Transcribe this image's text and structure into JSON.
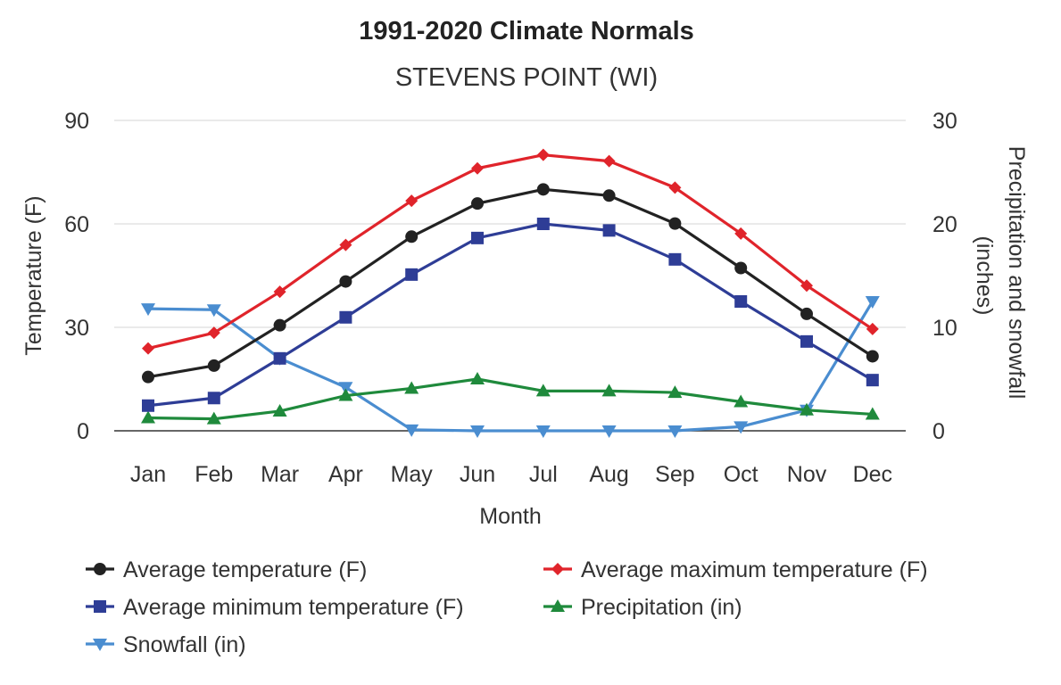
{
  "chart_data": {
    "type": "line",
    "title": "1991-2020 Climate Normals",
    "subtitle": "STEVENS POINT (WI)",
    "xlabel": "Month",
    "ylabel": "Temperature (F)",
    "y2label_line1": "Precipitation and snowfall",
    "y2label_line2": "(inches)",
    "categories": [
      "Jan",
      "Feb",
      "Mar",
      "Apr",
      "May",
      "Jun",
      "Jul",
      "Aug",
      "Sep",
      "Oct",
      "Nov",
      "Dec"
    ],
    "ylim": [
      0,
      90
    ],
    "y2lim": [
      0,
      30
    ],
    "yticks": [
      "0",
      "30",
      "60",
      "90"
    ],
    "y2ticks": [
      "0",
      "10",
      "20",
      "30"
    ],
    "grid": true,
    "legend_position": "bottom",
    "series": [
      {
        "name": "Average temperature (F)",
        "axis": "left",
        "color": "#222222",
        "marker": "circle",
        "values": [
          15.6,
          18.9,
          30.6,
          43.3,
          56.3,
          65.9,
          70.0,
          68.2,
          60.1,
          47.2,
          33.9,
          21.6
        ]
      },
      {
        "name": "Average maximum temperature (F)",
        "axis": "left",
        "color": "#e0242b",
        "marker": "diamond",
        "values": [
          23.9,
          28.4,
          40.3,
          53.9,
          66.7,
          76.1,
          80.0,
          78.2,
          70.5,
          57.2,
          42.1,
          29.5
        ]
      },
      {
        "name": "Average minimum temperature (F)",
        "axis": "left",
        "color": "#2e3d96",
        "marker": "square",
        "values": [
          7.3,
          9.5,
          21.0,
          32.9,
          45.3,
          55.9,
          60.0,
          58.1,
          49.7,
          37.5,
          25.9,
          14.7
        ]
      },
      {
        "name": "Precipitation (in)",
        "axis": "right",
        "color": "#1f8a3c",
        "marker": "triangle-up",
        "values": [
          1.25,
          1.15,
          1.9,
          3.4,
          4.1,
          5.0,
          3.85,
          3.85,
          3.7,
          2.8,
          2.0,
          1.6
        ]
      },
      {
        "name": "Snowfall (in)",
        "axis": "right",
        "color": "#4a8dd0",
        "marker": "triangle-down",
        "values": [
          11.8,
          11.7,
          7.0,
          4.2,
          0.1,
          0.0,
          0.0,
          0.0,
          0.0,
          0.4,
          2.0,
          12.5
        ]
      }
    ]
  },
  "colors": {
    "grid": "#dddddd",
    "baseline": "#333333",
    "text": "#333333"
  }
}
